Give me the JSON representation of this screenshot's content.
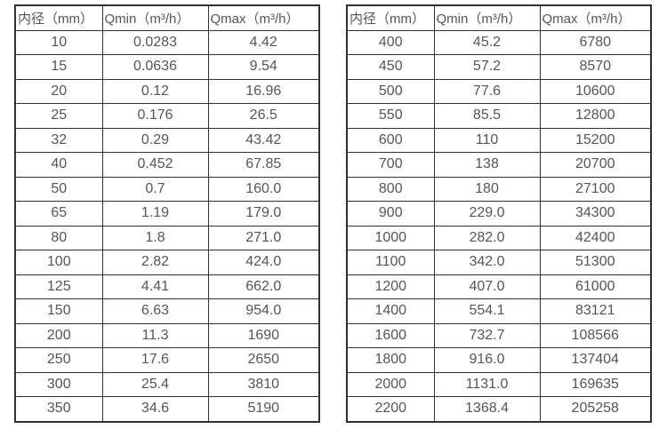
{
  "page": {
    "background_color": "#ffffff",
    "text_color": "#555555",
    "border_color": "#303030"
  },
  "tables": [
    {
      "name": "flow-table-small-diameters",
      "headers": [
        "内径（mm）",
        "Qmin（m³/h）",
        "Qmax（m³/h）"
      ],
      "rows": [
        [
          "10",
          "0.0283",
          "4.42"
        ],
        [
          "15",
          "0.0636",
          "9.54"
        ],
        [
          "20",
          "0.12",
          "16.96"
        ],
        [
          "25",
          "0.176",
          "26.5"
        ],
        [
          "32",
          "0.29",
          "43.42"
        ],
        [
          "40",
          "0.452",
          "67.85"
        ],
        [
          "50",
          "0.7",
          "160.0"
        ],
        [
          "65",
          "1.19",
          "179.0"
        ],
        [
          "80",
          "1.8",
          "271.0"
        ],
        [
          "100",
          "2.82",
          "424.0"
        ],
        [
          "125",
          "4.41",
          "662.0"
        ],
        [
          "150",
          "6.63",
          "954.0"
        ],
        [
          "200",
          "11.3",
          "1690"
        ],
        [
          "250",
          "17.6",
          "2650"
        ],
        [
          "300",
          "25.4",
          "3810"
        ],
        [
          "350",
          "34.6",
          "5190"
        ]
      ]
    },
    {
      "name": "flow-table-large-diameters",
      "headers": [
        "内径（mm）",
        "Qmin（m³/h）",
        "Qmax（m³/h）"
      ],
      "rows": [
        [
          "400",
          "45.2",
          "6780"
        ],
        [
          "450",
          "57.2",
          "8570"
        ],
        [
          "500",
          "77.6",
          "10600"
        ],
        [
          "550",
          "85.5",
          "12800"
        ],
        [
          "600",
          "110",
          "15200"
        ],
        [
          "700",
          "138",
          "20700"
        ],
        [
          "800",
          "180",
          "27100"
        ],
        [
          "900",
          "229.0",
          "34300"
        ],
        [
          "1000",
          "282.0",
          "42400"
        ],
        [
          "1100",
          "342.0",
          "51300"
        ],
        [
          "1200",
          "407.0",
          "61000"
        ],
        [
          "1400",
          "554.1",
          "83121"
        ],
        [
          "1600",
          "732.7",
          "108566"
        ],
        [
          "1800",
          "916.0",
          "137404"
        ],
        [
          "2000",
          "1131.0",
          "169635"
        ],
        [
          "2200",
          "1368.4",
          "205258"
        ]
      ]
    }
  ]
}
